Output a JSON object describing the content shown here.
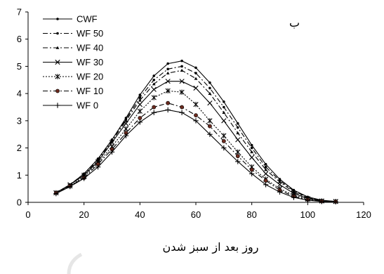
{
  "chart_data": {
    "type": "line",
    "panel_label": "ب",
    "xlabel": "روز بعد از سبز شدن",
    "ylabel": "",
    "xlim": [
      0,
      120
    ],
    "ylim": [
      0,
      7
    ],
    "xticks": [
      0,
      20,
      40,
      60,
      80,
      100,
      120
    ],
    "yticks": [
      0,
      1,
      2,
      3,
      4,
      5,
      6,
      7
    ],
    "grid": false,
    "legend_position": "top-left",
    "x": [
      10,
      15,
      20,
      25,
      30,
      35,
      40,
      45,
      50,
      55,
      60,
      65,
      70,
      75,
      80,
      85,
      90,
      95,
      100,
      105,
      110
    ],
    "series": [
      {
        "name": "CWF",
        "marker": "dot",
        "dash": "solid",
        "values": [
          0.35,
          0.65,
          1.05,
          1.6,
          2.3,
          3.1,
          3.95,
          4.65,
          5.1,
          5.2,
          4.95,
          4.4,
          3.7,
          2.9,
          2.1,
          1.4,
          0.85,
          0.45,
          0.2,
          0.08,
          0.03
        ]
      },
      {
        "name": "WF 50",
        "marker": "dot",
        "dash": "dashdot",
        "values": [
          0.35,
          0.65,
          1.05,
          1.6,
          2.3,
          3.05,
          3.85,
          4.5,
          4.9,
          5.0,
          4.75,
          4.2,
          3.5,
          2.75,
          2.0,
          1.3,
          0.8,
          0.42,
          0.18,
          0.07,
          0.03
        ]
      },
      {
        "name": "WF 40",
        "marker": "triangle",
        "dash": "dashdot",
        "values": [
          0.35,
          0.65,
          1.0,
          1.55,
          2.25,
          3.0,
          3.75,
          4.35,
          4.75,
          4.85,
          4.55,
          4.0,
          3.3,
          2.55,
          1.85,
          1.2,
          0.75,
          0.38,
          0.16,
          0.06,
          0.03
        ]
      },
      {
        "name": "WF 30",
        "marker": "x",
        "dash": "solid",
        "values": [
          0.35,
          0.65,
          1.0,
          1.5,
          2.2,
          2.9,
          3.6,
          4.15,
          4.45,
          4.45,
          4.2,
          3.65,
          3.0,
          2.3,
          1.65,
          1.05,
          0.65,
          0.33,
          0.14,
          0.05,
          0.03
        ]
      },
      {
        "name": "WF 20",
        "marker": "asterisk",
        "dash": "dotted",
        "values": [
          0.35,
          0.6,
          0.95,
          1.45,
          2.05,
          2.7,
          3.35,
          3.85,
          4.1,
          4.05,
          3.6,
          3.0,
          2.45,
          1.85,
          1.3,
          0.85,
          0.5,
          0.26,
          0.12,
          0.05,
          0.03
        ]
      },
      {
        "name": "WF 10",
        "marker": "circle",
        "dash": "dashdot",
        "values": [
          0.35,
          0.6,
          0.9,
          1.4,
          1.95,
          2.55,
          3.1,
          3.5,
          3.65,
          3.5,
          3.2,
          2.8,
          2.25,
          1.7,
          1.2,
          0.8,
          0.45,
          0.22,
          0.1,
          0.04,
          0.03
        ]
      },
      {
        "name": "WF 0",
        "marker": "plus",
        "dash": "solid",
        "values": [
          0.32,
          0.58,
          0.88,
          1.3,
          1.85,
          2.45,
          2.95,
          3.3,
          3.4,
          3.3,
          3.0,
          2.5,
          2.0,
          1.5,
          1.05,
          0.65,
          0.38,
          0.18,
          0.08,
          0.03,
          0.02
        ]
      }
    ]
  }
}
